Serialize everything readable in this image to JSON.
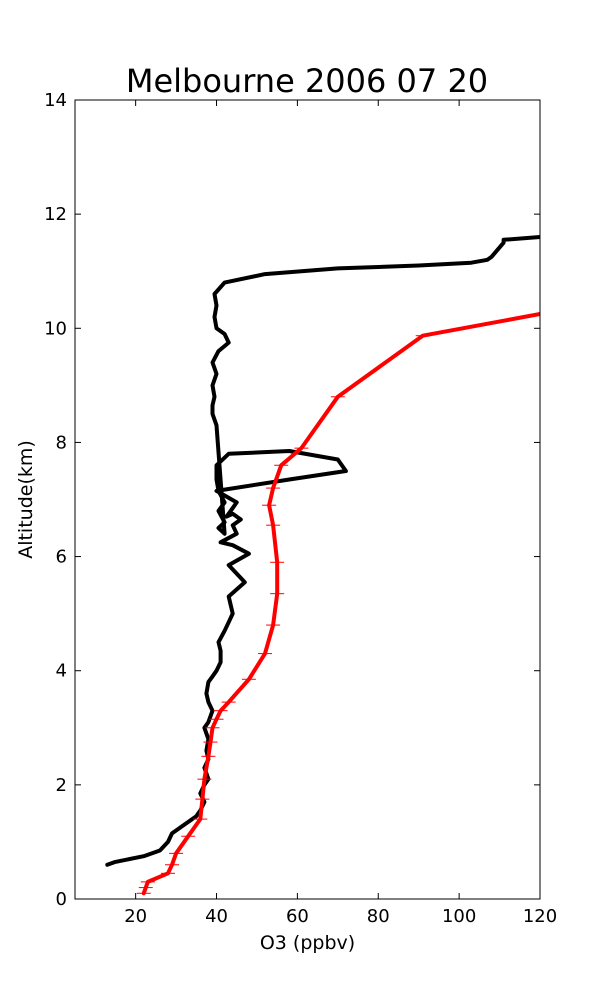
{
  "chart_data": {
    "type": "line",
    "title": "Melbourne 2006 07 20",
    "xlabel": "O3 (ppbv)",
    "ylabel": "Altitude(km)",
    "xlim": [
      5,
      120
    ],
    "ylim": [
      0,
      14
    ],
    "xticks": [
      20,
      40,
      60,
      80,
      100,
      120
    ],
    "yticks": [
      0,
      2,
      4,
      6,
      8,
      10,
      12,
      14
    ],
    "grid": false,
    "series": [
      {
        "color": "#000000",
        "x": [
          13,
          15,
          22,
          26,
          28,
          29,
          32,
          35,
          36,
          37,
          36,
          37,
          38,
          37,
          38,
          37.5,
          38,
          37,
          38,
          39,
          38,
          37.5,
          38,
          39,
          40,
          41,
          41,
          40.5,
          42,
          43,
          44,
          43,
          47,
          43,
          48,
          44,
          41,
          45,
          44,
          46,
          44,
          42.5,
          44,
          45,
          40,
          58,
          72,
          70,
          58,
          43,
          40,
          40,
          40.5,
          42,
          40.5,
          42,
          40.5,
          42,
          40,
          39,
          39,
          39.5,
          39,
          40,
          39,
          40.5,
          43,
          42,
          40,
          39.5,
          40,
          39.5,
          42,
          52,
          70,
          90,
          103,
          107,
          108,
          111,
          111,
          120
        ],
        "y": [
          0.6,
          0.65,
          0.75,
          0.85,
          1.0,
          1.15,
          1.3,
          1.45,
          1.55,
          1.7,
          1.85,
          2.0,
          2.1,
          2.3,
          2.45,
          2.6,
          2.8,
          3.0,
          3.1,
          3.3,
          3.45,
          3.6,
          3.8,
          3.9,
          4.0,
          4.15,
          4.35,
          4.5,
          4.7,
          4.85,
          5.0,
          5.3,
          5.55,
          5.85,
          6.05,
          6.2,
          6.25,
          6.4,
          6.55,
          6.65,
          6.75,
          6.7,
          6.85,
          6.95,
          7.15,
          7.35,
          7.5,
          7.7,
          7.85,
          7.8,
          7.6,
          7.35,
          7.15,
          6.95,
          6.8,
          6.6,
          6.5,
          6.4,
          8.3,
          8.5,
          8.65,
          8.8,
          9.0,
          9.2,
          9.4,
          9.6,
          9.75,
          9.9,
          10.0,
          10.2,
          10.4,
          10.6,
          10.8,
          10.95,
          11.05,
          11.1,
          11.15,
          11.2,
          11.25,
          11.5,
          11.55,
          11.6
        ]
      },
      {
        "color": "#ff0000",
        "x": [
          22,
          22.5,
          23,
          28,
          29,
          30,
          33,
          36,
          36.5,
          37,
          38,
          38.5,
          39,
          40,
          41,
          43,
          48,
          52,
          54,
          55,
          55,
          54,
          53,
          54,
          56,
          61,
          70,
          91,
          120
        ],
        "y": [
          0.1,
          0.2,
          0.3,
          0.45,
          0.6,
          0.8,
          1.1,
          1.4,
          1.75,
          2.1,
          2.5,
          2.75,
          3.0,
          3.15,
          3.3,
          3.45,
          3.85,
          4.3,
          4.8,
          5.35,
          5.9,
          6.55,
          6.9,
          7.2,
          7.6,
          7.9,
          8.8,
          9.87,
          10.25
        ]
      }
    ]
  }
}
